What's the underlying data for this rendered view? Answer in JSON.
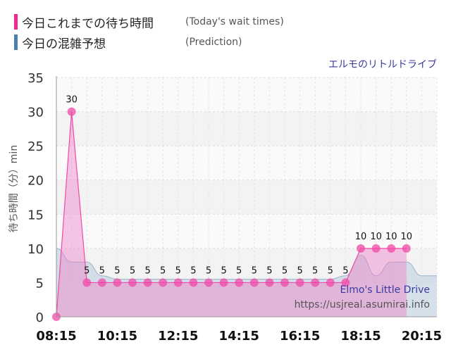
{
  "legend": [
    {
      "label": "今日これまでの待ち時間",
      "sub": "(Today's wait times)",
      "color": "#f0288c"
    },
    {
      "label": "今日の混雑予想",
      "sub": "(Prediction)",
      "color": "#4a7fb0"
    }
  ],
  "watermark_top": "エルモのリトルドライブ",
  "watermark_en": "Elmo's Little Drive",
  "watermark_url": "https://usjreal.asumirai.info",
  "colors": {
    "actual": "#f080c8",
    "actual_line": "#f04aa8",
    "predicted": "#c8d7e4",
    "predicted_line": "#9ab3c9"
  },
  "chart_data": {
    "type": "area",
    "ylabel": "待ち時間（分）min",
    "ylim": [
      0,
      35
    ],
    "y_ticks": [
      0,
      5,
      10,
      15,
      20,
      25,
      30,
      35
    ],
    "x_ticks": [
      "08:15",
      "10:15",
      "12:15",
      "14:15",
      "16:15",
      "18:15",
      "20:15"
    ],
    "grid": true,
    "series": [
      {
        "name": "今日これまでの待ち時間",
        "x": [
          "08:15",
          "08:45",
          "09:15",
          "09:45",
          "10:15",
          "10:45",
          "11:15",
          "11:45",
          "12:15",
          "12:45",
          "13:15",
          "13:45",
          "14:15",
          "14:45",
          "15:15",
          "15:45",
          "16:15",
          "16:45",
          "17:15",
          "17:45",
          "18:15",
          "18:45",
          "19:15",
          "19:45"
        ],
        "values": [
          0,
          30,
          5,
          5,
          5,
          5,
          5,
          5,
          5,
          5,
          5,
          5,
          5,
          5,
          5,
          5,
          5,
          5,
          5,
          5,
          10,
          10,
          10,
          10
        ],
        "labels": [
          "",
          "30",
          "5",
          "5",
          "5",
          "5",
          "5",
          "5",
          "5",
          "5",
          "5",
          "5",
          "5",
          "5",
          "5",
          "5",
          "5",
          "5",
          "5",
          "5",
          "10",
          "10",
          "10",
          "10"
        ]
      },
      {
        "name": "今日の混雑予想",
        "x": [
          "08:15",
          "08:45",
          "09:15",
          "09:45",
          "10:15",
          "10:45",
          "11:15",
          "11:45",
          "12:15",
          "12:45",
          "13:15",
          "13:45",
          "14:15",
          "14:45",
          "15:15",
          "15:45",
          "16:15",
          "16:45",
          "17:15",
          "17:45",
          "18:15",
          "18:45",
          "19:15",
          "19:45",
          "20:15",
          "20:45"
        ],
        "values": [
          10,
          8,
          8,
          6,
          5.5,
          5.5,
          5.5,
          5.5,
          5.5,
          5.5,
          5.5,
          5.5,
          5.5,
          5.5,
          5.5,
          5.5,
          5.5,
          5.5,
          5.5,
          6,
          9,
          6,
          8,
          8,
          6,
          6
        ]
      }
    ]
  }
}
